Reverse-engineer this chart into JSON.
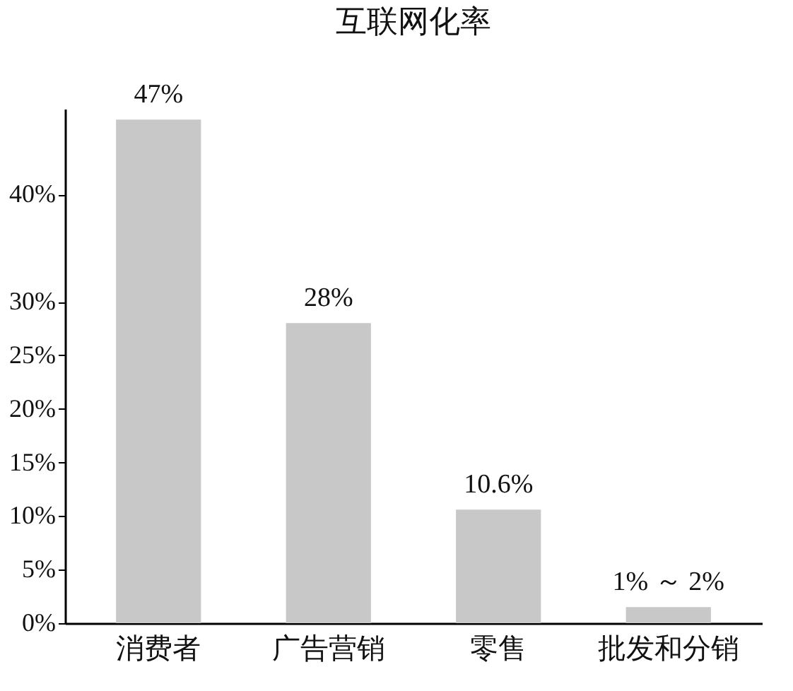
{
  "chart_data": {
    "type": "bar",
    "title": "互联网化率",
    "categories": [
      "消费者",
      "广告营销",
      "零售",
      "批发和分销"
    ],
    "values": [
      47,
      28,
      10.6,
      1.5
    ],
    "value_labels": [
      "47%",
      "28%",
      "10.6%",
      "1% ～ 2%"
    ],
    "color": "#c8c8c8",
    "ylim": [
      0,
      48
    ],
    "yticks": [
      {
        "value": 0,
        "label": "0%"
      },
      {
        "value": 5,
        "label": "5%"
      },
      {
        "value": 10,
        "label": "10%"
      },
      {
        "value": 15,
        "label": "15%"
      },
      {
        "value": 20,
        "label": "20%"
      },
      {
        "value": 25,
        "label": "25%"
      },
      {
        "value": 30,
        "label": "30%"
      },
      {
        "value": 40,
        "label": "40%"
      }
    ],
    "grid": false
  }
}
